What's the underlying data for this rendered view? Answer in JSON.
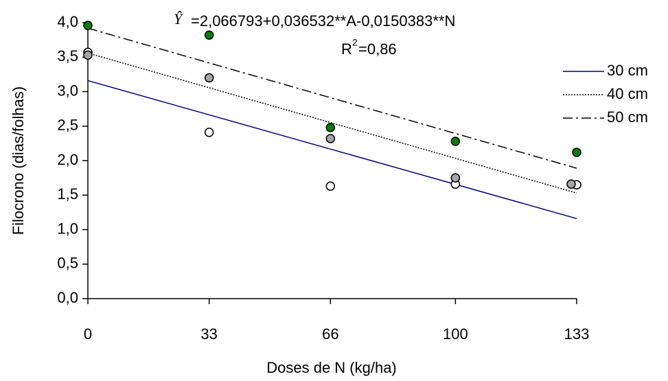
{
  "chart_data": {
    "type": "scatter",
    "equation_symbol": "Ŷ",
    "equation": "=2,066793+0,036532**A-0,0150383**N",
    "r2_label": "R",
    "r2_sup": "2",
    "r2_value": "=0,86",
    "xlabel": "Doses de N (kg/ha)",
    "ylabel": "Filocrono (dias/folhas)",
    "xlim": [
      0,
      133
    ],
    "ylim": [
      0,
      4
    ],
    "xticks": [
      0,
      33,
      66,
      100,
      133
    ],
    "yticks": [
      {
        "value": 0,
        "label": "0,0"
      },
      {
        "value": 0.5,
        "label": "0,5"
      },
      {
        "value": 1,
        "label": "1,0"
      },
      {
        "value": 1.5,
        "label": "1,5"
      },
      {
        "value": 2,
        "label": "2,0"
      },
      {
        "value": 2.5,
        "label": "2,5"
      },
      {
        "value": 3,
        "label": "3,0"
      },
      {
        "value": 3.5,
        "label": "3,5"
      },
      {
        "value": 4,
        "label": "4,0"
      }
    ],
    "legend": "right",
    "series": [
      {
        "name": "30 cm",
        "color": "#000080",
        "dash": "solid",
        "marker_fill": "#ffffff",
        "line_x": [
          0,
          133
        ],
        "line_y": [
          3.16,
          1.16
        ],
        "points_x": [
          0,
          33,
          66,
          100,
          133
        ],
        "points_y": [
          3.57,
          2.41,
          1.63,
          1.66,
          1.65
        ]
      },
      {
        "name": "40 cm",
        "color": "#000000",
        "dash": "dotted",
        "marker_fill": "#a6a6a6",
        "line_x": [
          0,
          133
        ],
        "line_y": [
          3.56,
          1.53
        ],
        "points_x": [
          0,
          33,
          66,
          100,
          131.5
        ],
        "points_y": [
          3.53,
          3.2,
          2.32,
          1.75,
          1.66
        ]
      },
      {
        "name": "50 cm",
        "color": "#000000",
        "dash": "dashdot",
        "marker_fill": "#0a7d0a",
        "line_x": [
          0,
          133
        ],
        "line_y": [
          3.92,
          1.89
        ],
        "points_x": [
          0,
          33,
          66,
          100,
          133
        ],
        "points_y": [
          3.96,
          3.82,
          2.48,
          2.28,
          2.12
        ]
      }
    ]
  }
}
